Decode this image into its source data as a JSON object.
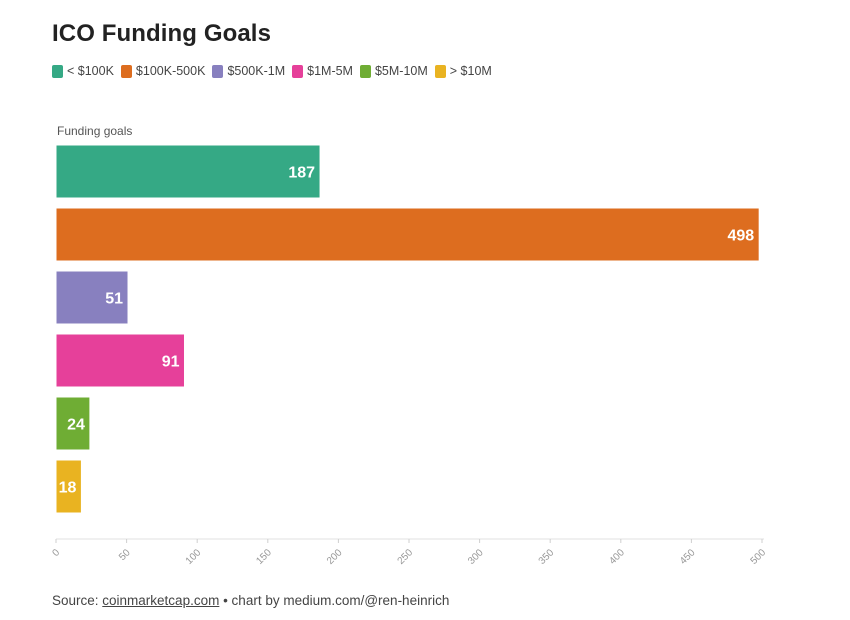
{
  "header": {
    "title": "ICO Funding Goals"
  },
  "legend": [
    {
      "label": "< $100K",
      "color": "#35a985"
    },
    {
      "label": "$100K-500K",
      "color": "#dd6d1f"
    },
    {
      "label": "$500K-1M",
      "color": "#8880bf"
    },
    {
      "label": "$1M-5M",
      "color": "#e6409a"
    },
    {
      "label": "$5M-10M",
      "color": "#6fad34"
    },
    {
      "label": "> $10M",
      "color": "#e9b321"
    }
  ],
  "footer": {
    "source_prefix": "Source: ",
    "source_link": "coinmarketcap.com",
    "suffix": " • chart by medium.com/@ren-heinrich"
  },
  "chart_data": {
    "type": "bar",
    "orientation": "horizontal",
    "title": "ICO Funding Goals",
    "ylabel": "Funding goals",
    "xlabel": "",
    "categories": [
      "< $100K",
      "$100K-500K",
      "$500K-1M",
      "$1M-5M",
      "$5M-10M",
      "> $10M"
    ],
    "values": [
      187,
      498,
      51,
      91,
      24,
      18
    ],
    "colors": [
      "#35a985",
      "#dd6d1f",
      "#8880bf",
      "#e6409a",
      "#6fad34",
      "#e9b321"
    ],
    "xlim": [
      0,
      500
    ],
    "xticks": [
      "0",
      "50",
      "100",
      "150",
      "200",
      "250",
      "300",
      "350",
      "400",
      "450",
      "500"
    ],
    "grid": false,
    "legend_position": "top-left"
  }
}
